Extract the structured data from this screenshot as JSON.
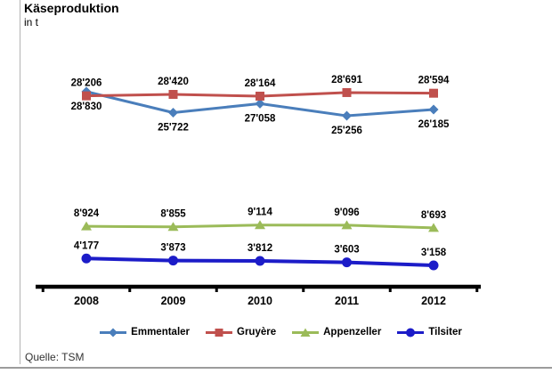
{
  "header": {
    "title": "Käseproduktion",
    "unit": "in t"
  },
  "footer": {
    "source": "Quelle: TSM"
  },
  "chart_data": {
    "type": "line",
    "title": "Käseproduktion",
    "ylabel_unit": "in t",
    "categories": [
      "2008",
      "2009",
      "2010",
      "2011",
      "2012"
    ],
    "series": [
      {
        "name": "Emmentaler",
        "color": "#4A7EBB",
        "marker": "diamond",
        "line_width": 3,
        "label_position": "below",
        "values": [
          28830,
          25722,
          27058,
          25256,
          26185
        ],
        "labels": [
          "28'830",
          "25'722",
          "27'058",
          "25'256",
          "26'185"
        ]
      },
      {
        "name": "Gruyère",
        "color": "#C0504D",
        "marker": "square",
        "line_width": 3,
        "label_position": "above",
        "values": [
          28206,
          28420,
          28164,
          28691,
          28594
        ],
        "labels": [
          "28'206",
          "28'420",
          "28'164",
          "28'691",
          "28'594"
        ]
      },
      {
        "name": "Appenzeller",
        "color": "#9BBB59",
        "marker": "triangle",
        "line_width": 3,
        "label_position": "above",
        "values": [
          8924,
          8855,
          9114,
          9096,
          8693
        ],
        "labels": [
          "8'924",
          "8'855",
          "9'114",
          "9'096",
          "8'693"
        ]
      },
      {
        "name": "Tilsiter",
        "color": "#1C1CC8",
        "marker": "circle",
        "line_width": 4,
        "label_position": "above",
        "values": [
          4177,
          3873,
          3812,
          3603,
          3158
        ],
        "labels": [
          "4'177",
          "3'873",
          "3'812",
          "3'603",
          "3'158"
        ]
      }
    ],
    "ylim": [
      0,
      30000
    ],
    "grid": false,
    "y_axis_visible": false,
    "x_axis_color": "#000000",
    "data_label_color": "#000000",
    "legend_position": "bottom",
    "source": "Quelle: TSM"
  }
}
